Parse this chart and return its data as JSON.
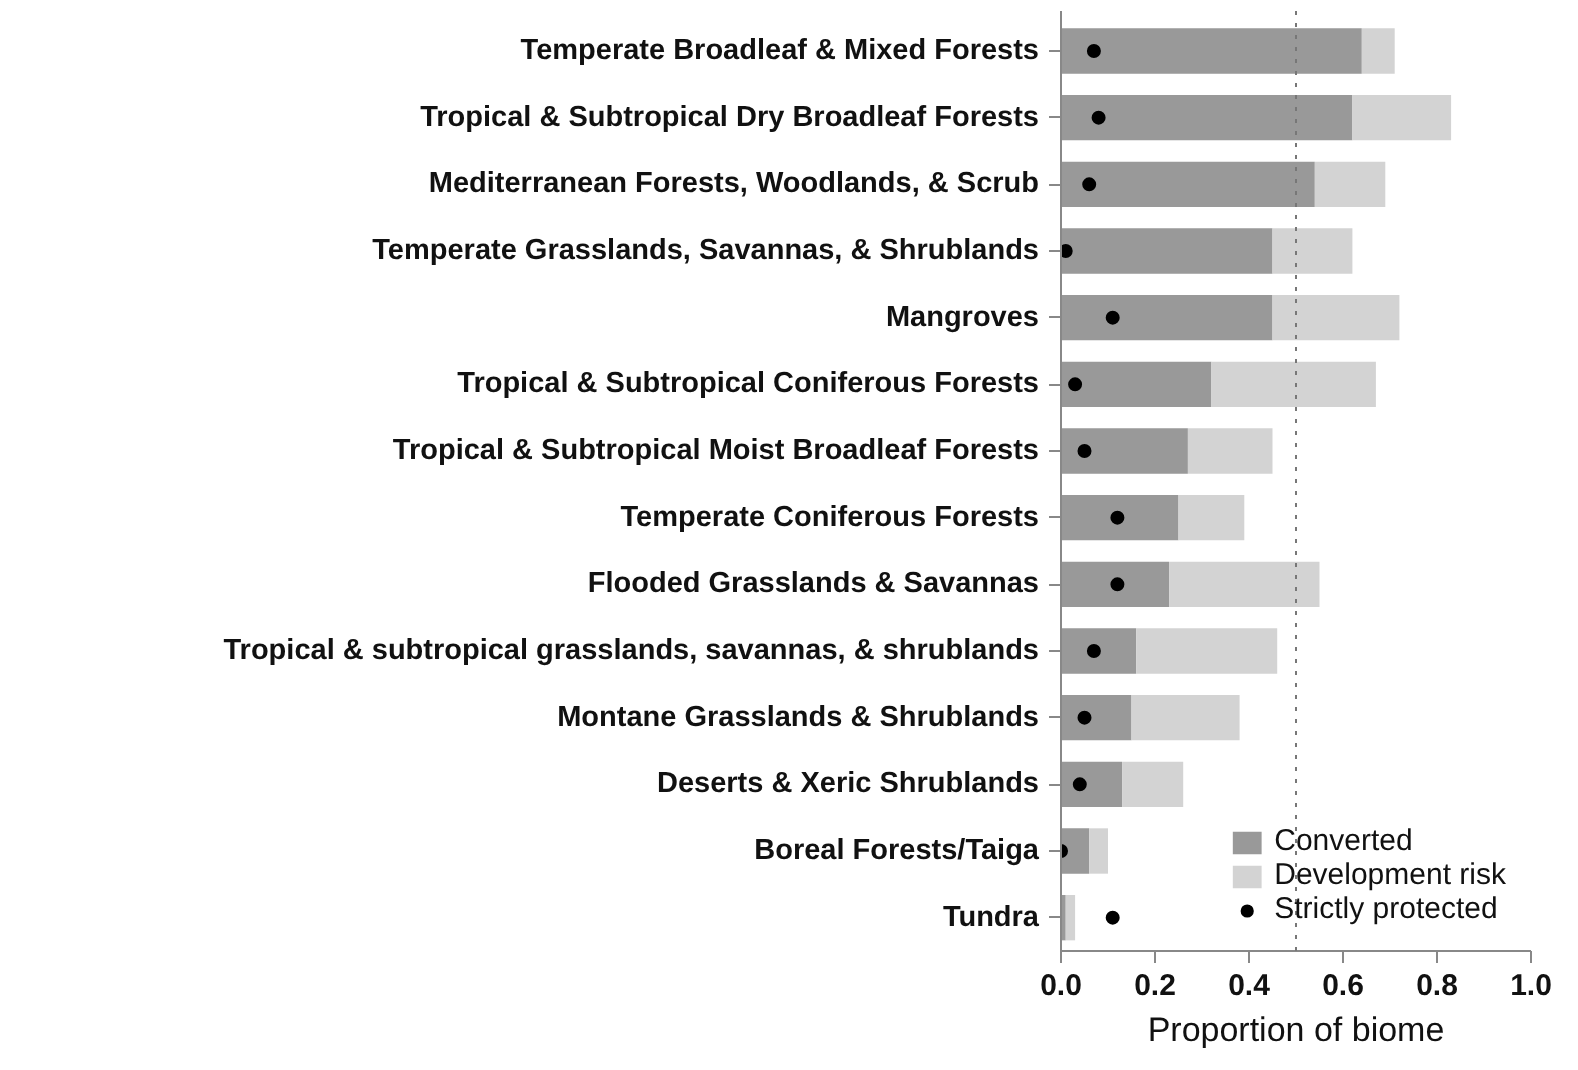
{
  "chart_data": {
    "type": "bar",
    "orientation": "horizontal",
    "stacked": true,
    "categories": [
      "Temperate Broadleaf & Mixed Forests",
      "Tropical & Subtropical Dry Broadleaf Forests",
      "Mediterranean Forests, Woodlands, & Scrub",
      "Temperate Grasslands, Savannas, & Shrublands",
      "Mangroves",
      "Tropical & Subtropical Coniferous Forests",
      "Tropical & Subtropical Moist Broadleaf Forests",
      "Temperate Coniferous Forests",
      "Flooded Grasslands & Savannas",
      "Tropical & subtropical grasslands, savannas, & shrublands",
      "Montane Grasslands & Shrublands",
      "Deserts & Xeric Shrublands",
      "Boreal Forests/Taiga",
      "Tundra"
    ],
    "series": [
      {
        "name": "Converted",
        "color": "#999999",
        "values": [
          0.64,
          0.62,
          0.54,
          0.45,
          0.45,
          0.32,
          0.27,
          0.25,
          0.23,
          0.16,
          0.15,
          0.13,
          0.06,
          0.01
        ]
      },
      {
        "name": "Development risk",
        "color": "#d3d3d3",
        "values": [
          0.07,
          0.21,
          0.15,
          0.17,
          0.27,
          0.35,
          0.18,
          0.14,
          0.32,
          0.3,
          0.23,
          0.13,
          0.04,
          0.02
        ]
      },
      {
        "name": "Strictly protected",
        "type": "scatter",
        "color": "#000000",
        "values": [
          0.07,
          0.08,
          0.06,
          0.01,
          0.11,
          0.03,
          0.05,
          0.12,
          0.12,
          0.07,
          0.05,
          0.04,
          0.0,
          0.11
        ]
      }
    ],
    "xlabel": "Proportion of biome",
    "xlim": [
      0,
      1
    ],
    "xticks": [
      {
        "value": 0,
        "label": "0.0"
      },
      0.2,
      0.4,
      0.6,
      0.8,
      {
        "value": 1,
        "label": "1.0"
      }
    ],
    "ref_lines": [
      {
        "axis": "x",
        "value": 0.5,
        "color": "#777777",
        "line_style": "dotted"
      }
    ],
    "grid": false,
    "legend": "bottom right",
    "marker": "circle"
  }
}
